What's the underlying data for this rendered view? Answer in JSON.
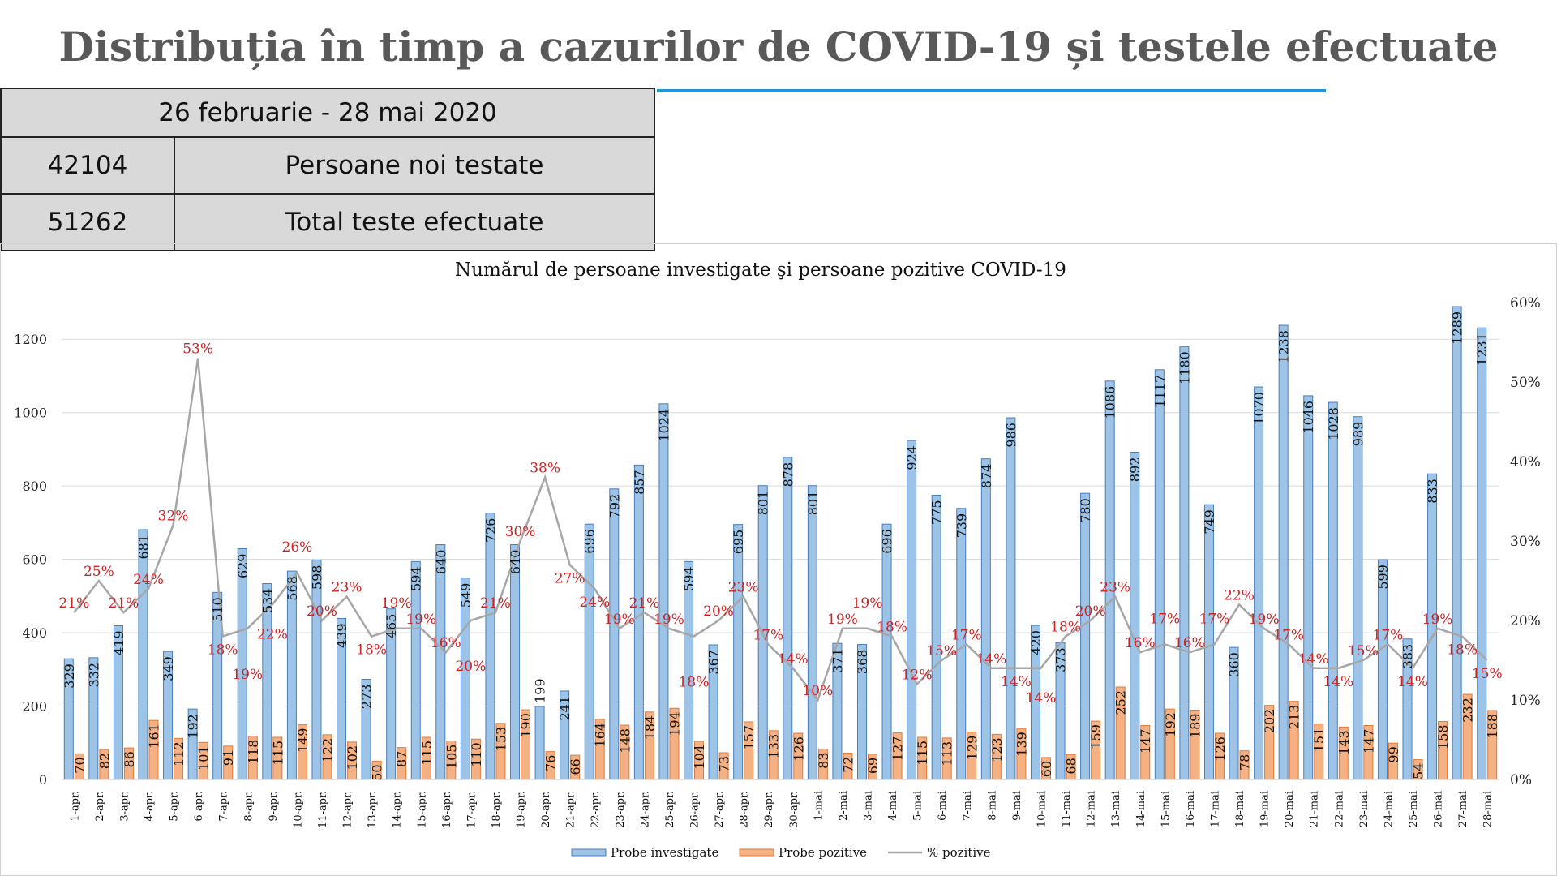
{
  "page_title": "Distribuția în timp a cazurilor de COVID-19 și testele efectuate",
  "summary": {
    "period": "26 februarie - 28 mai 2020",
    "rows": [
      {
        "value": "42104",
        "label": "Persoane noi testate"
      },
      {
        "value": "51262",
        "label": "Total  teste efectuate"
      }
    ]
  },
  "chart_data": {
    "type": "bar",
    "title": "Numărul de persoane investigate şi persoane pozitive COVID-19",
    "categories": [
      "1-apr.",
      "2-apr.",
      "3-apr.",
      "4-apr.",
      "5-apr.",
      "6-apr.",
      "7-apr.",
      "8-apr.",
      "9-apr.",
      "10-apr.",
      "11-apr.",
      "12-apr.",
      "13-apr.",
      "14-apr.",
      "15-apr.",
      "16-apr.",
      "17-apr.",
      "18-apr.",
      "19-apr.",
      "20-apr.",
      "21-apr.",
      "22-apr.",
      "23-apr.",
      "24-apr.",
      "25-apr.",
      "26-apr.",
      "27-apr.",
      "28-apr.",
      "29-apr.",
      "30-apr.",
      "1-mai",
      "2-mai",
      "3-mai",
      "4-mai",
      "5-mai",
      "6-mai",
      "7-mai",
      "8-mai",
      "9-mai",
      "10-mai",
      "11-mai",
      "12-mai",
      "13-mai",
      "14-mai",
      "15-mai",
      "16-mai",
      "17-mai",
      "18-mai",
      "19-mai",
      "20-mai",
      "21-mai",
      "22-mai",
      "23-mai",
      "24-mai",
      "25-mai",
      "26-mai",
      "27-mai",
      "28-mai"
    ],
    "series": [
      {
        "name": "Probe investigate",
        "type": "bar",
        "axis": "left",
        "color": "#9dc3e6",
        "values": [
          329,
          332,
          419,
          681,
          349,
          192,
          510,
          629,
          534,
          568,
          598,
          439,
          273,
          465,
          594,
          640,
          549,
          726,
          640,
          199,
          241,
          696,
          792,
          857,
          1024,
          594,
          367,
          695,
          801,
          878,
          801,
          371,
          368,
          696,
          924,
          775,
          739,
          874,
          986,
          420,
          373,
          780,
          1086,
          892,
          1117,
          1180,
          749,
          360,
          1070,
          1238,
          1046,
          1028,
          989,
          599,
          383,
          833,
          1289,
          1231
        ]
      },
      {
        "name": "Probe pozitive",
        "type": "bar",
        "axis": "right",
        "color": "#f4b183",
        "values": [
          70,
          82,
          86,
          161,
          112,
          101,
          91,
          118,
          115,
          149,
          122,
          102,
          50,
          87,
          115,
          105,
          110,
          153,
          190,
          76,
          66,
          164,
          148,
          184,
          194,
          104,
          73,
          157,
          133,
          126,
          83,
          72,
          69,
          127,
          115,
          113,
          129,
          123,
          139,
          60,
          68,
          159,
          252,
          147,
          192,
          189,
          126,
          78,
          202,
          213,
          151,
          143,
          147,
          99,
          54,
          158,
          232,
          188
        ]
      },
      {
        "name": "% pozitive",
        "type": "line",
        "axis": "right",
        "color": "#a6a6a6",
        "values": [
          21,
          25,
          21,
          24,
          32,
          53,
          18,
          19,
          22,
          26,
          20,
          23,
          18,
          19,
          19,
          16,
          20,
          21,
          30,
          38,
          27,
          24,
          19,
          21,
          19,
          18,
          20,
          23,
          17,
          14,
          10,
          19,
          19,
          18,
          12,
          15,
          17,
          14,
          14,
          14,
          18,
          20,
          23,
          16,
          17,
          16,
          17,
          22,
          19,
          17,
          14,
          14,
          15,
          17,
          14,
          19,
          18,
          15
        ]
      }
    ],
    "left_ticks": [
      "0",
      "200",
      "400",
      "600",
      "800",
      "1000",
      "1200"
    ],
    "right_ticks": [
      "0%",
      "10%",
      "20%",
      "30%",
      "40%",
      "50%",
      "60%"
    ],
    "ylim_left": [
      0,
      1300
    ],
    "ylim_right": [
      0,
      60
    ],
    "legend": "bottom",
    "grid": true
  }
}
